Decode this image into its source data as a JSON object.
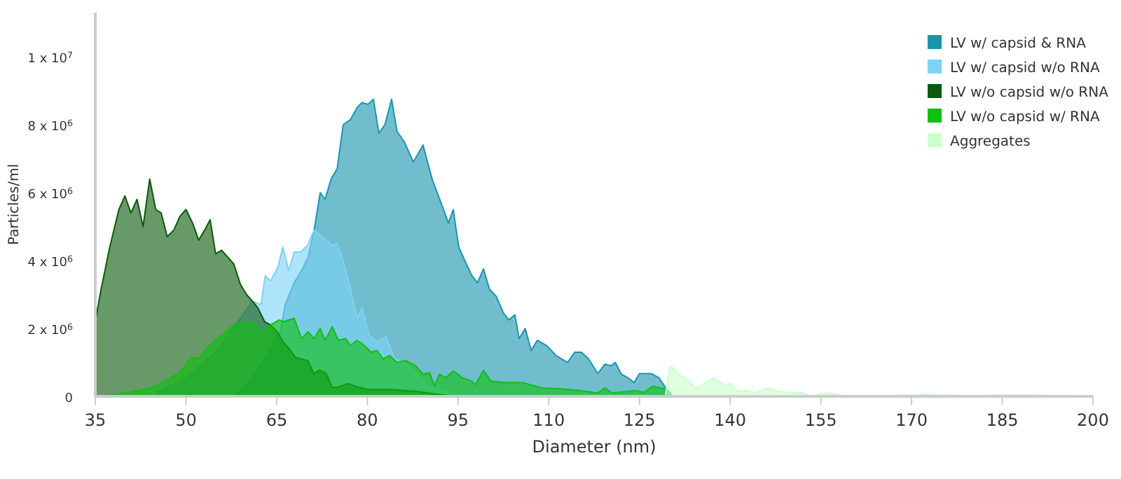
{
  "chart_data": {
    "type": "area",
    "xlabel": "Diameter (nm)",
    "ylabel": "Particles/ml",
    "xlim": [
      35,
      200
    ],
    "xticks": [
      35,
      50,
      65,
      80,
      95,
      110,
      125,
      140,
      155,
      170,
      185,
      200
    ],
    "ylim": [
      0,
      11300000
    ],
    "yticks": [
      0,
      {
        "value": 2000000,
        "label": "2 x 10$^{6}$"
      },
      {
        "value": 4000000,
        "label": "4 x 10$^{6}$"
      },
      {
        "value": 6000000,
        "label": "6 x 10$^{6}$"
      },
      {
        "value": 8000000,
        "label": "8 x 10$^{6}$"
      },
      {
        "value": 10000000,
        "label": "1 x 10$^{7}$"
      }
    ],
    "grid": false,
    "legend": "top right",
    "series": [
      {
        "name": "LV w/ capsid & RNA",
        "color": "#1a95b0",
        "x": [
          58,
          60,
          62,
          64,
          65.6,
          66.4,
          67.9,
          69.1,
          70.2,
          71.2,
          72.2,
          73,
          74,
          75,
          76,
          77.2,
          78.3,
          79.1,
          80.1,
          81,
          81.9,
          82.9,
          84,
          84.9,
          86.1,
          87.6,
          89.2,
          90.7,
          92.6,
          93.4,
          94.2,
          95.1,
          96.1,
          97.3,
          98.2,
          99.2,
          100.2,
          101.3,
          102.5,
          103.4,
          104.4,
          105.1,
          106.1,
          107.1,
          108.1,
          109.6,
          111.2,
          113.1,
          114.3,
          115.4,
          116.6,
          118.1,
          119.3,
          120.3,
          121,
          122,
          123.1,
          124.1,
          125,
          127,
          128.2,
          129.3,
          130.5
        ],
        "values": [
          0,
          300000,
          800000,
          1400000,
          1900000,
          2700000,
          3350000,
          3700000,
          4100000,
          4900000,
          6000000,
          5800000,
          6400000,
          6700000,
          8000000,
          8150000,
          8500000,
          8650000,
          8600000,
          8750000,
          7750000,
          8000000,
          8750000,
          7800000,
          7500000,
          6900000,
          7400000,
          6400000,
          5500000,
          5100000,
          5500000,
          4400000,
          4000000,
          3550000,
          3350000,
          3750000,
          3150000,
          2950000,
          2450000,
          2250000,
          2400000,
          1700000,
          2000000,
          1350000,
          1650000,
          1500000,
          1200000,
          1000000,
          1300000,
          1300000,
          1100000,
          670000,
          950000,
          900000,
          1000000,
          650000,
          550000,
          400000,
          670000,
          670000,
          550000,
          260000,
          0
        ]
      },
      {
        "name": "LV w/ capsid w/o RNA",
        "color": "#7dd3f5",
        "x": [
          45,
          50,
          53,
          55,
          57,
          59,
          61,
          62.4,
          63.1,
          64,
          65.2,
          66,
          67,
          67.9,
          69,
          70.1,
          71.2,
          72.5,
          74.1,
          75,
          76,
          77.2,
          78.3,
          79.1,
          80.3,
          81.6,
          83.1,
          84.5,
          86.4,
          88,
          90,
          95
        ],
        "values": [
          100000,
          500000,
          1000000,
          1300000,
          1800000,
          2300000,
          2800000,
          2700000,
          3550000,
          3400000,
          3800000,
          4400000,
          3700000,
          4250000,
          4250000,
          4450000,
          4900000,
          4700000,
          4450000,
          4500000,
          4000000,
          3150000,
          2300000,
          2600000,
          1800000,
          1600000,
          1750000,
          1100000,
          950000,
          700000,
          300000,
          0
        ]
      },
      {
        "name": "LV w/o capsid w/o RNA",
        "color": "#0b5a0b",
        "x": [
          35,
          35.9,
          37.4,
          38.9,
          39.9,
          40.9,
          41.9,
          42.9,
          44,
          45,
          45.9,
          46.9,
          48,
          49,
          50,
          51.1,
          52.1,
          53.1,
          54,
          54.9,
          55.9,
          56.9,
          57.9,
          59,
          60,
          61,
          61.9,
          63,
          64,
          65.1,
          66.1,
          67.1,
          68.1,
          69.1,
          70.2,
          71.1,
          72.1,
          73.2,
          74.2,
          75.2,
          76.8,
          78,
          80,
          84,
          88,
          92,
          95
        ],
        "values": [
          2200000,
          3100000,
          4400000,
          5500000,
          5900000,
          5400000,
          5800000,
          5000000,
          6400000,
          5500000,
          5400000,
          4700000,
          4900000,
          5300000,
          5500000,
          5100000,
          4600000,
          4900000,
          5200000,
          4200000,
          4300000,
          4100000,
          3900000,
          3300000,
          3000000,
          2800000,
          2600000,
          2200000,
          2100000,
          1900000,
          1600000,
          1400000,
          1150000,
          1100000,
          1050000,
          670000,
          770000,
          670000,
          260000,
          280000,
          380000,
          300000,
          200000,
          200000,
          150000,
          50000,
          0
        ]
      },
      {
        "name": "LV w/o capsid w/ RNA",
        "color": "#10c010",
        "x": [
          36,
          40,
          43,
          45,
          47,
          49,
          50.9,
          52,
          54,
          55.9,
          57.9,
          61,
          62.4,
          64,
          65.4,
          66.2,
          67.9,
          69.1,
          70.2,
          71.2,
          72.2,
          73,
          74.2,
          75.2,
          76.4,
          77.2,
          78.3,
          79.5,
          80.6,
          81.6,
          82.6,
          83.7,
          84.9,
          86.4,
          88,
          89.2,
          90.3,
          91.1,
          91.9,
          93,
          94.2,
          95.7,
          97.2,
          97.9,
          99.2,
          100.4,
          102.7,
          105.8,
          108.9,
          112,
          115.1,
          118.1,
          119.3,
          120.4,
          124.3,
          125.8,
          127.3,
          129.2,
          130
        ],
        "values": [
          0,
          100000,
          200000,
          300000,
          500000,
          700000,
          1150000,
          1100000,
          1500000,
          1800000,
          2100000,
          2200000,
          1900000,
          2100000,
          2250000,
          2200000,
          2300000,
          1700000,
          1900000,
          1700000,
          2000000,
          1650000,
          2050000,
          1650000,
          1700000,
          1500000,
          1650000,
          1500000,
          1300000,
          1350000,
          1100000,
          1200000,
          1000000,
          1050000,
          900000,
          650000,
          700000,
          300000,
          650000,
          550000,
          750000,
          550000,
          450000,
          350000,
          770000,
          450000,
          400000,
          400000,
          250000,
          220000,
          170000,
          100000,
          250000,
          100000,
          170000,
          120000,
          300000,
          220000,
          0
        ]
      },
      {
        "name": "Aggregates",
        "color": "#ccffcc",
        "x": [
          129.3,
          130.1,
          131.6,
          133.2,
          134.3,
          135.9,
          137.3,
          139,
          140.1,
          141.3,
          142.9,
          144.1,
          146.3,
          147.8,
          149.4,
          152,
          153.2,
          155.9,
          158.3,
          165,
          172.2,
          180,
          185.9,
          200
        ],
        "values": [
          50000,
          900000,
          650000,
          470000,
          230000,
          400000,
          550000,
          330000,
          370000,
          150000,
          170000,
          100000,
          250000,
          150000,
          120000,
          100000,
          0,
          100000,
          30000,
          20000,
          50000,
          20000,
          40000,
          10000
        ]
      }
    ]
  }
}
